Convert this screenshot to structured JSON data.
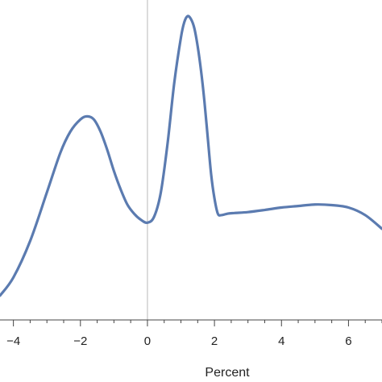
{
  "chart_data": {
    "type": "line",
    "title": "",
    "xlabel": "Percent",
    "ylabel": "",
    "xlim": [
      -4.4,
      7.0
    ],
    "ylim": [
      0,
      1
    ],
    "grid": false,
    "x_ticks": [
      -4,
      -2,
      0,
      2,
      4,
      6
    ],
    "x_tick_labels": [
      "−4",
      "−2",
      "0",
      "2",
      "4",
      "6"
    ],
    "color": "#5b7bb0",
    "series": [
      {
        "x": [
          -4.4,
          -4.0,
          -3.5,
          -3.0,
          -2.6,
          -2.3,
          -2.0,
          -1.8,
          -1.6,
          -1.4,
          -1.2,
          -1.0,
          -0.8,
          -0.6,
          -0.4,
          -0.2,
          0.0,
          0.2,
          0.4,
          0.6,
          0.8,
          1.0,
          1.1,
          1.2,
          1.3,
          1.4,
          1.5,
          1.6,
          1.7,
          1.8,
          1.9,
          2.0,
          2.1,
          2.2,
          2.4,
          2.6,
          3.0,
          3.5,
          4.0,
          4.5,
          5.0,
          5.5,
          6.0,
          6.5,
          7.0
        ],
        "y": [
          0.08,
          0.14,
          0.26,
          0.42,
          0.55,
          0.62,
          0.66,
          0.67,
          0.66,
          0.62,
          0.56,
          0.49,
          0.43,
          0.38,
          0.35,
          0.33,
          0.32,
          0.34,
          0.42,
          0.58,
          0.78,
          0.93,
          0.98,
          1.0,
          0.99,
          0.96,
          0.9,
          0.82,
          0.72,
          0.6,
          0.48,
          0.4,
          0.35,
          0.345,
          0.35,
          0.352,
          0.355,
          0.362,
          0.37,
          0.375,
          0.38,
          0.378,
          0.37,
          0.345,
          0.3
        ]
      }
    ]
  }
}
